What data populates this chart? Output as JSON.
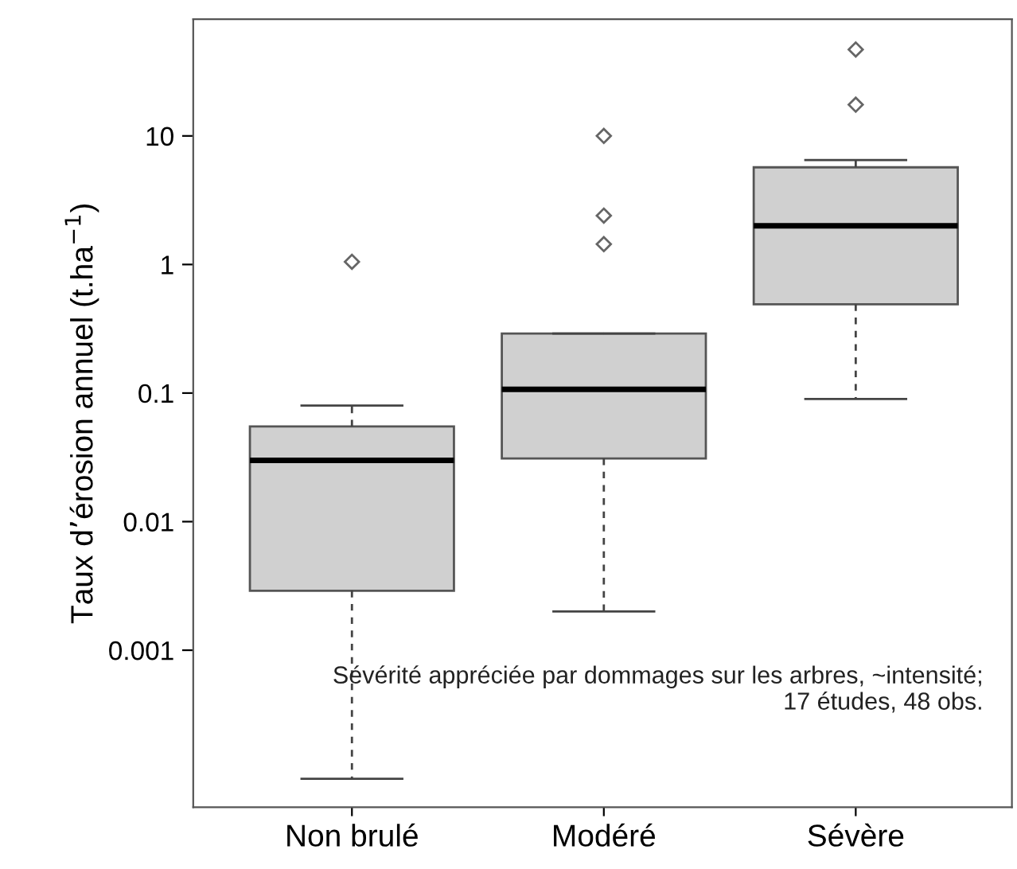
{
  "chart_data": {
    "type": "box",
    "categories": [
      "Non brulé",
      "Modéré",
      "Sévère"
    ],
    "ylabel": "Taux d’érosion annuel (t.ha$^{−1}$)",
    "annotations": [
      "Sévérité appréciée par dommages sur les arbres, ~intensité; 17 études, 48 obs."
    ],
    "log": true,
    "ylim": [
      6e-05,
      81
    ],
    "yticks": [
      10,
      1,
      0.1,
      0.01,
      0.001
    ],
    "marker": "diamond",
    "grid": false,
    "color": "#d0d0d0",
    "boxes": [
      {
        "low": 0.0001,
        "q1": 0.0029,
        "median": 0.03,
        "q3": 0.055,
        "high": 0.08,
        "outliers": [
          1.05
        ]
      },
      {
        "low": 0.002,
        "q1": 0.031,
        "median": 0.107,
        "q3": 0.29,
        "high": 0.29,
        "outliers": [
          1.44,
          2.4,
          10
        ]
      },
      {
        "low": 0.09,
        "q1": 0.49,
        "median": 2.0,
        "q3": 5.7,
        "high": 6.5,
        "outliers": [
          17.5,
          47
        ]
      }
    ]
  }
}
